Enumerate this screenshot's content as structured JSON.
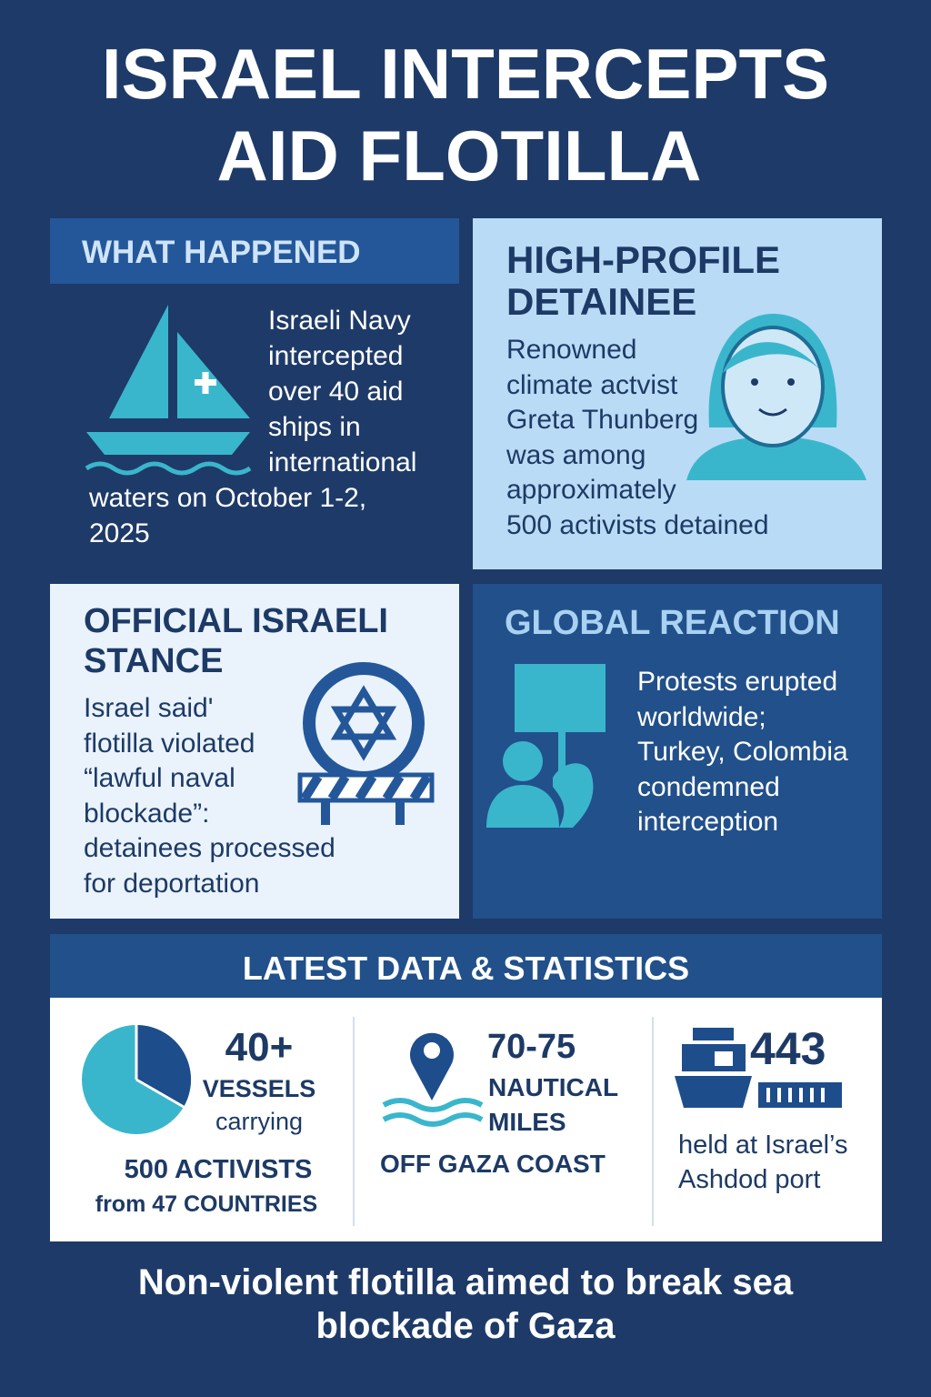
{
  "title": [
    "ISRAEL INTERCEPTS",
    "AID FLOTILLA"
  ],
  "what_happened": {
    "heading": "WHAT HAPPENED",
    "lines": [
      "Israeli Navy",
      "intercepted",
      "over 40 aid",
      "ships in",
      "international",
      "waters on October 1-2,",
      "2025"
    ]
  },
  "detainee": {
    "heading": [
      "HIGH-PROFILE",
      "DETAINEE"
    ],
    "lines": [
      "Renowned",
      "climate actvist",
      "Greta Thunberg",
      "was among",
      "approximately",
      "500 activists detained"
    ]
  },
  "stance": {
    "heading": [
      "OFFICIAL ISRAELI",
      "STANCE"
    ],
    "lines": [
      "Israel said'",
      "flotilla violated",
      "“lawful naval",
      "blockade”:",
      "detainees processed",
      "for deportation"
    ]
  },
  "reaction": {
    "heading": "GLOBAL REACTION",
    "lines": [
      "Protests erupted",
      "worldwide;",
      "Turkey, Colombia",
      "condemned",
      "interception"
    ]
  },
  "stats": {
    "heading": "LATEST DATA & STATISTICS",
    "items": [
      {
        "figure": "40+",
        "lines": [
          "VESSELS",
          "carrying",
          "500 ACTIVISTS",
          "from 47 COUNTRIES"
        ]
      },
      {
        "figure": "70-75",
        "lines": [
          "NAUTICAL",
          "MILES",
          "OFF GAZA COAST"
        ]
      },
      {
        "figure": "443",
        "lines": [
          "held at Israel’s",
          "Ashdod port"
        ]
      }
    ]
  },
  "footer": [
    "Non-violent flotilla aimed to break sea",
    "blockade of Gaza"
  ]
}
